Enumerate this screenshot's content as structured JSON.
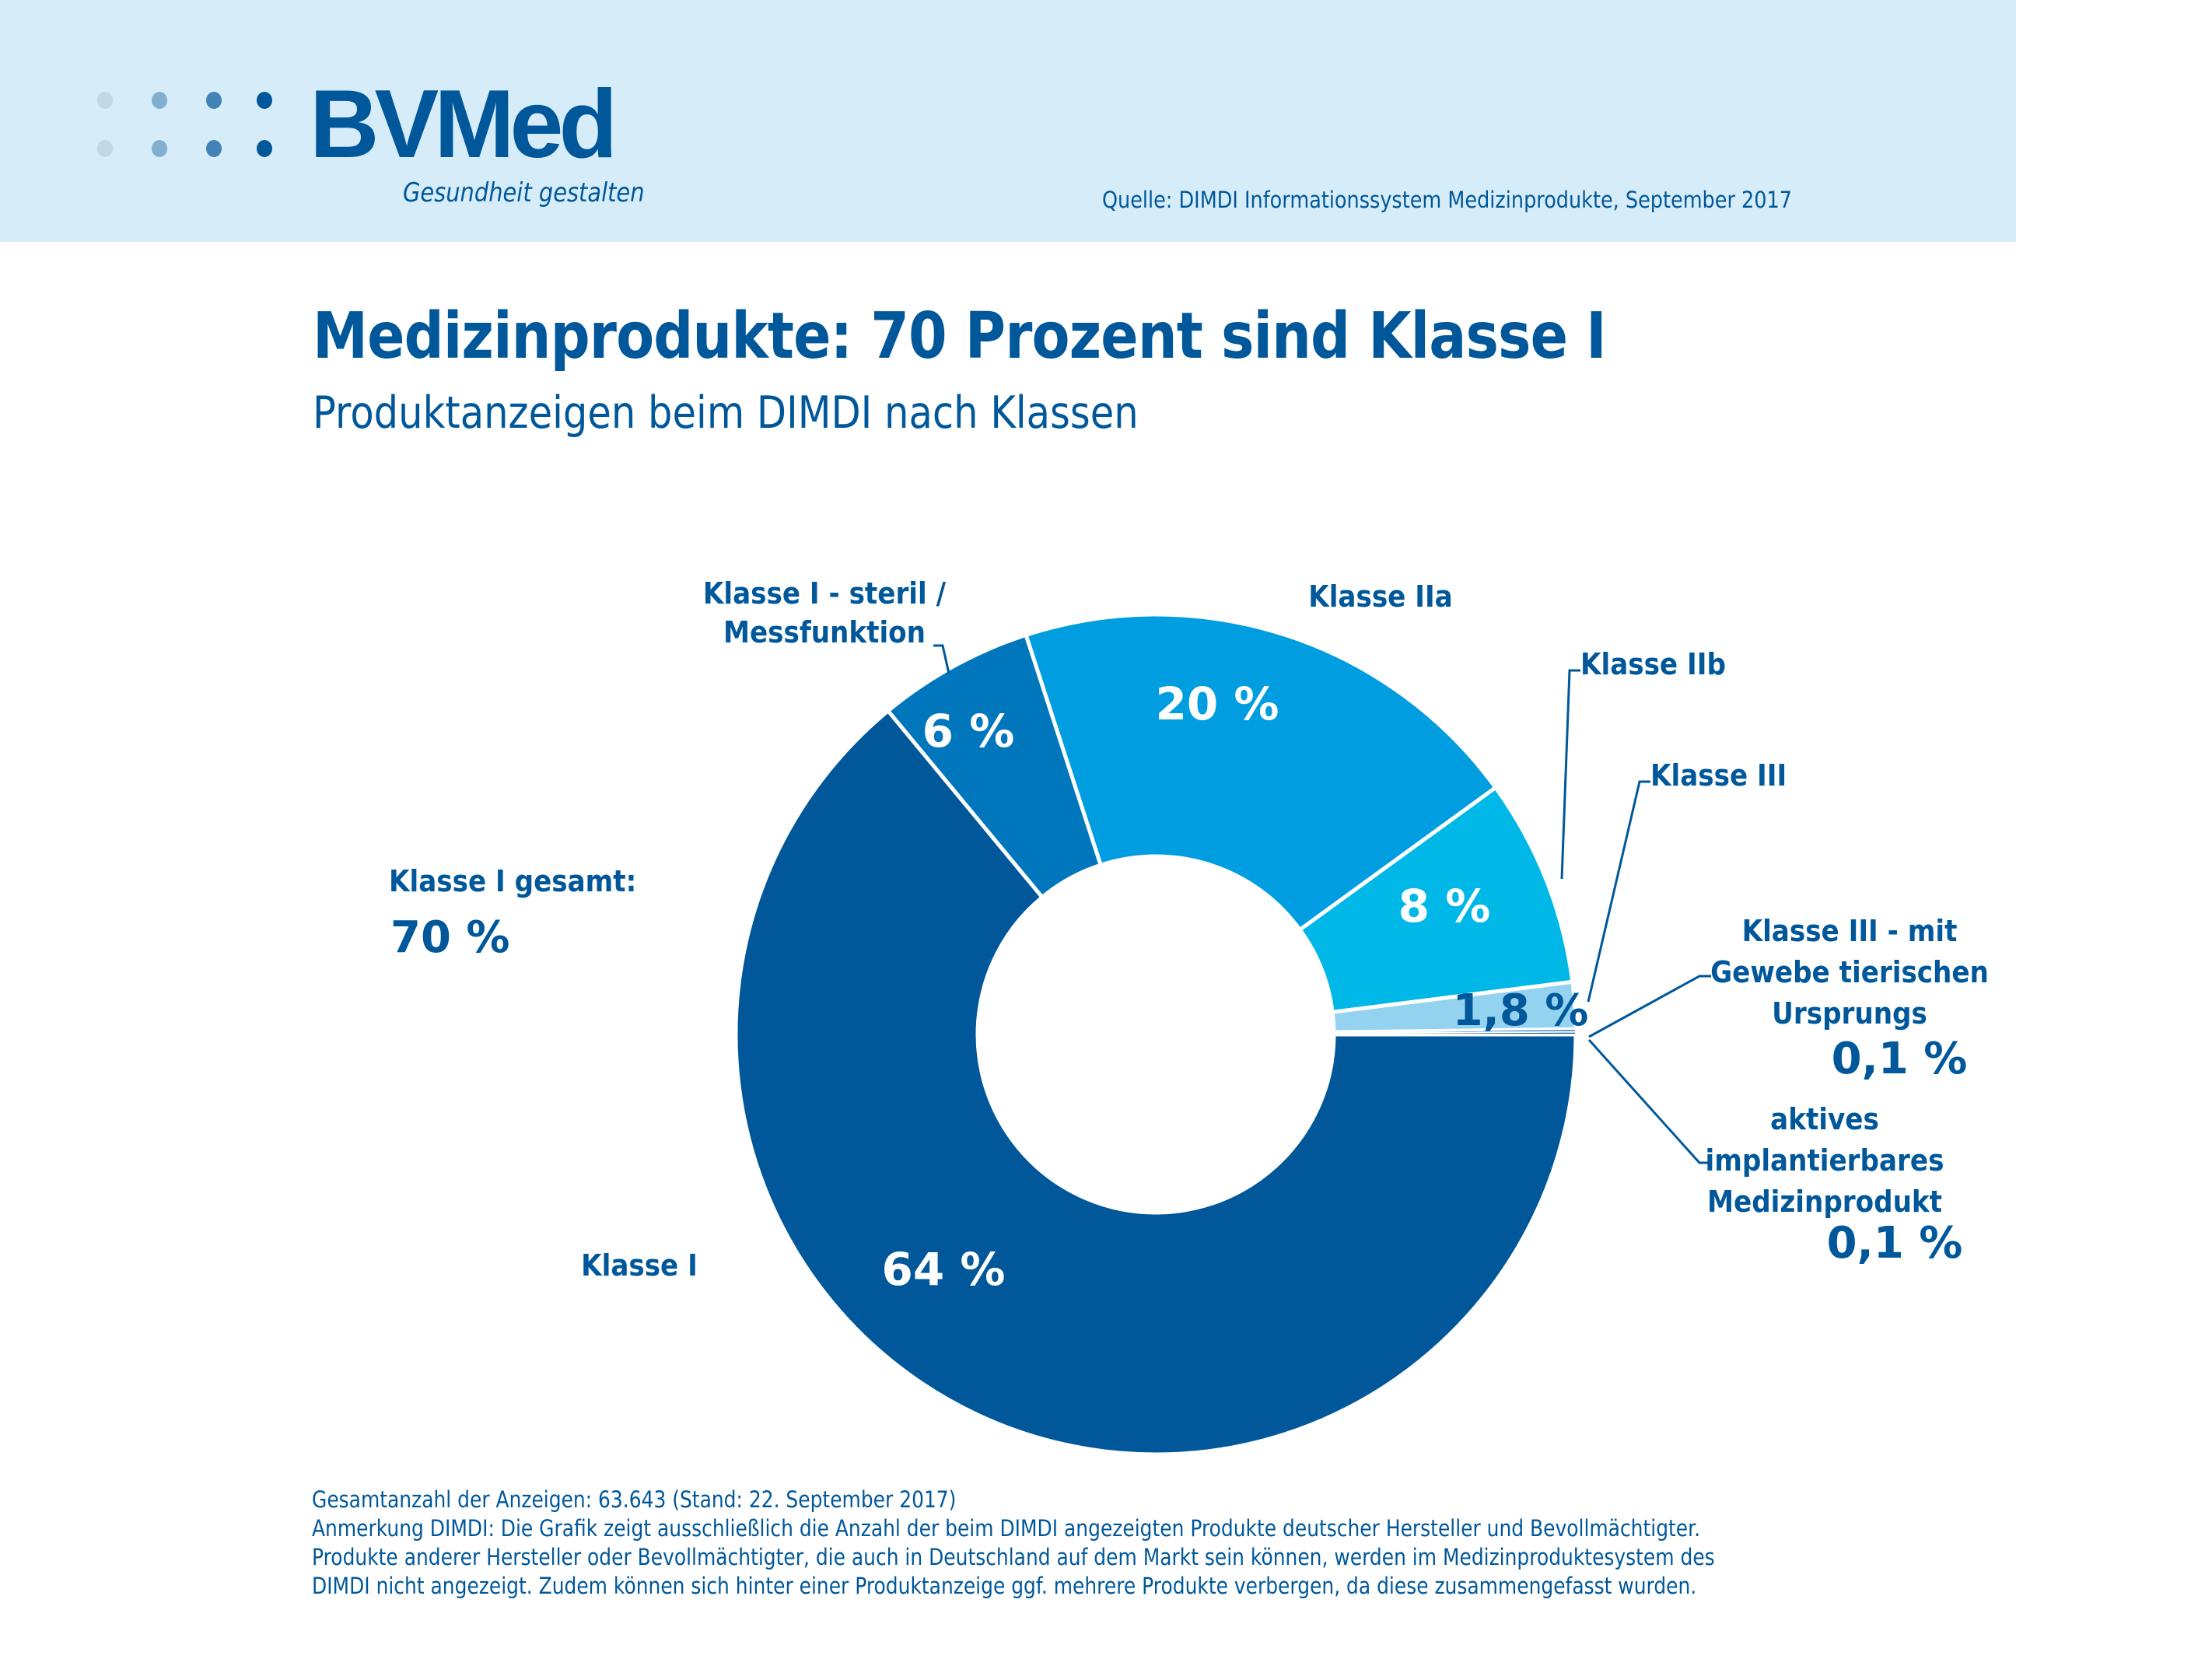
{
  "header": {
    "logo_text": "BVMed",
    "tagline": "Gesundheit gestalten",
    "source": "Quelle: DIMDI Informationssystem Medizinprodukte, September 2017",
    "brand_color": "#00589b",
    "band_color": "#d6ecf8",
    "logo_dot_colors": [
      "#c2d6e6",
      "#82aed0",
      "#4282b6",
      "#00589b"
    ]
  },
  "title": "Medizinprodukte: 70 Prozent sind Klasse I",
  "subtitle": "Produktanzeigen beim DIMDI nach Klassen",
  "summary_label": {
    "line1": "Klasse I gesamt:",
    "line2": "70 %"
  },
  "chart_data": {
    "type": "pie",
    "donut": true,
    "title": "Medizinprodukte: 70 Prozent sind Klasse I",
    "subtitle": "Produktanzeigen beim DIMDI nach Klassen",
    "start": "3 o'clock, clockwise",
    "slices": [
      {
        "name": "Klasse I",
        "value": 64,
        "display": "64 %",
        "color": "#00589b",
        "value_color": "#ffffff",
        "label_lines": [
          "Klasse I"
        ]
      },
      {
        "name": "Klasse I - steril / Messfunktion",
        "value": 6,
        "display": "6 %",
        "color": "#0077bd",
        "value_color": "#ffffff",
        "label_lines": [
          "Klasse I - steril /",
          "Messfunktion"
        ]
      },
      {
        "name": "Klasse IIa",
        "value": 20,
        "display": "20 %",
        "color": "#009ee0",
        "value_color": "#ffffff",
        "label_lines": [
          "Klasse IIa"
        ]
      },
      {
        "name": "Klasse IIb",
        "value": 8,
        "display": "8 %",
        "color": "#00b8e8",
        "value_color": "#ffffff",
        "label_lines": [
          "Klasse IIb"
        ]
      },
      {
        "name": "Klasse III",
        "value": 1.8,
        "display": "1,8 %",
        "color": "#94d3f0",
        "value_color": "#00589b",
        "label_lines": [
          "Klasse III"
        ]
      },
      {
        "name": "Klasse III - mit Gewebe tierischen Ursprungs",
        "value": 0.1,
        "display": "0,1 %",
        "color": "#00589b",
        "value_color": "#00589b",
        "label_lines": [
          "Klasse III - mit",
          "Gewebe tierischen",
          "Ursprungs"
        ]
      },
      {
        "name": "aktives implantierbares Medizinprodukt",
        "value": 0.1,
        "display": "0,1 %",
        "color": "#00589b",
        "value_color": "#00589b",
        "label_lines": [
          "aktives",
          "implantierbares",
          "Medizinprodukt"
        ]
      }
    ],
    "legend": "none (callout labels)",
    "group_total": {
      "label": "Klasse I gesamt:",
      "value": 70,
      "display": "70 %"
    }
  },
  "footer": {
    "line1": "Gesamtanzahl der Anzeigen: 63.643 (Stand: 22. September 2017)",
    "line2": "Anmerkung DIMDI: Die Grafik zeigt ausschließlich die Anzahl der beim DIMDI angezeigten Produkte deutscher Hersteller und Bevollmächtigter.",
    "line3": "Produkte anderer Hersteller oder Bevollmächtigter, die auch in Deutschland auf dem Markt sein können, werden im Medizinproduktesystem des",
    "line4": "DIMDI nicht angezeigt. Zudem können sich hinter einer Produktanzeige ggf. mehrere Produkte verbergen, da diese zusammengefasst wurden."
  }
}
